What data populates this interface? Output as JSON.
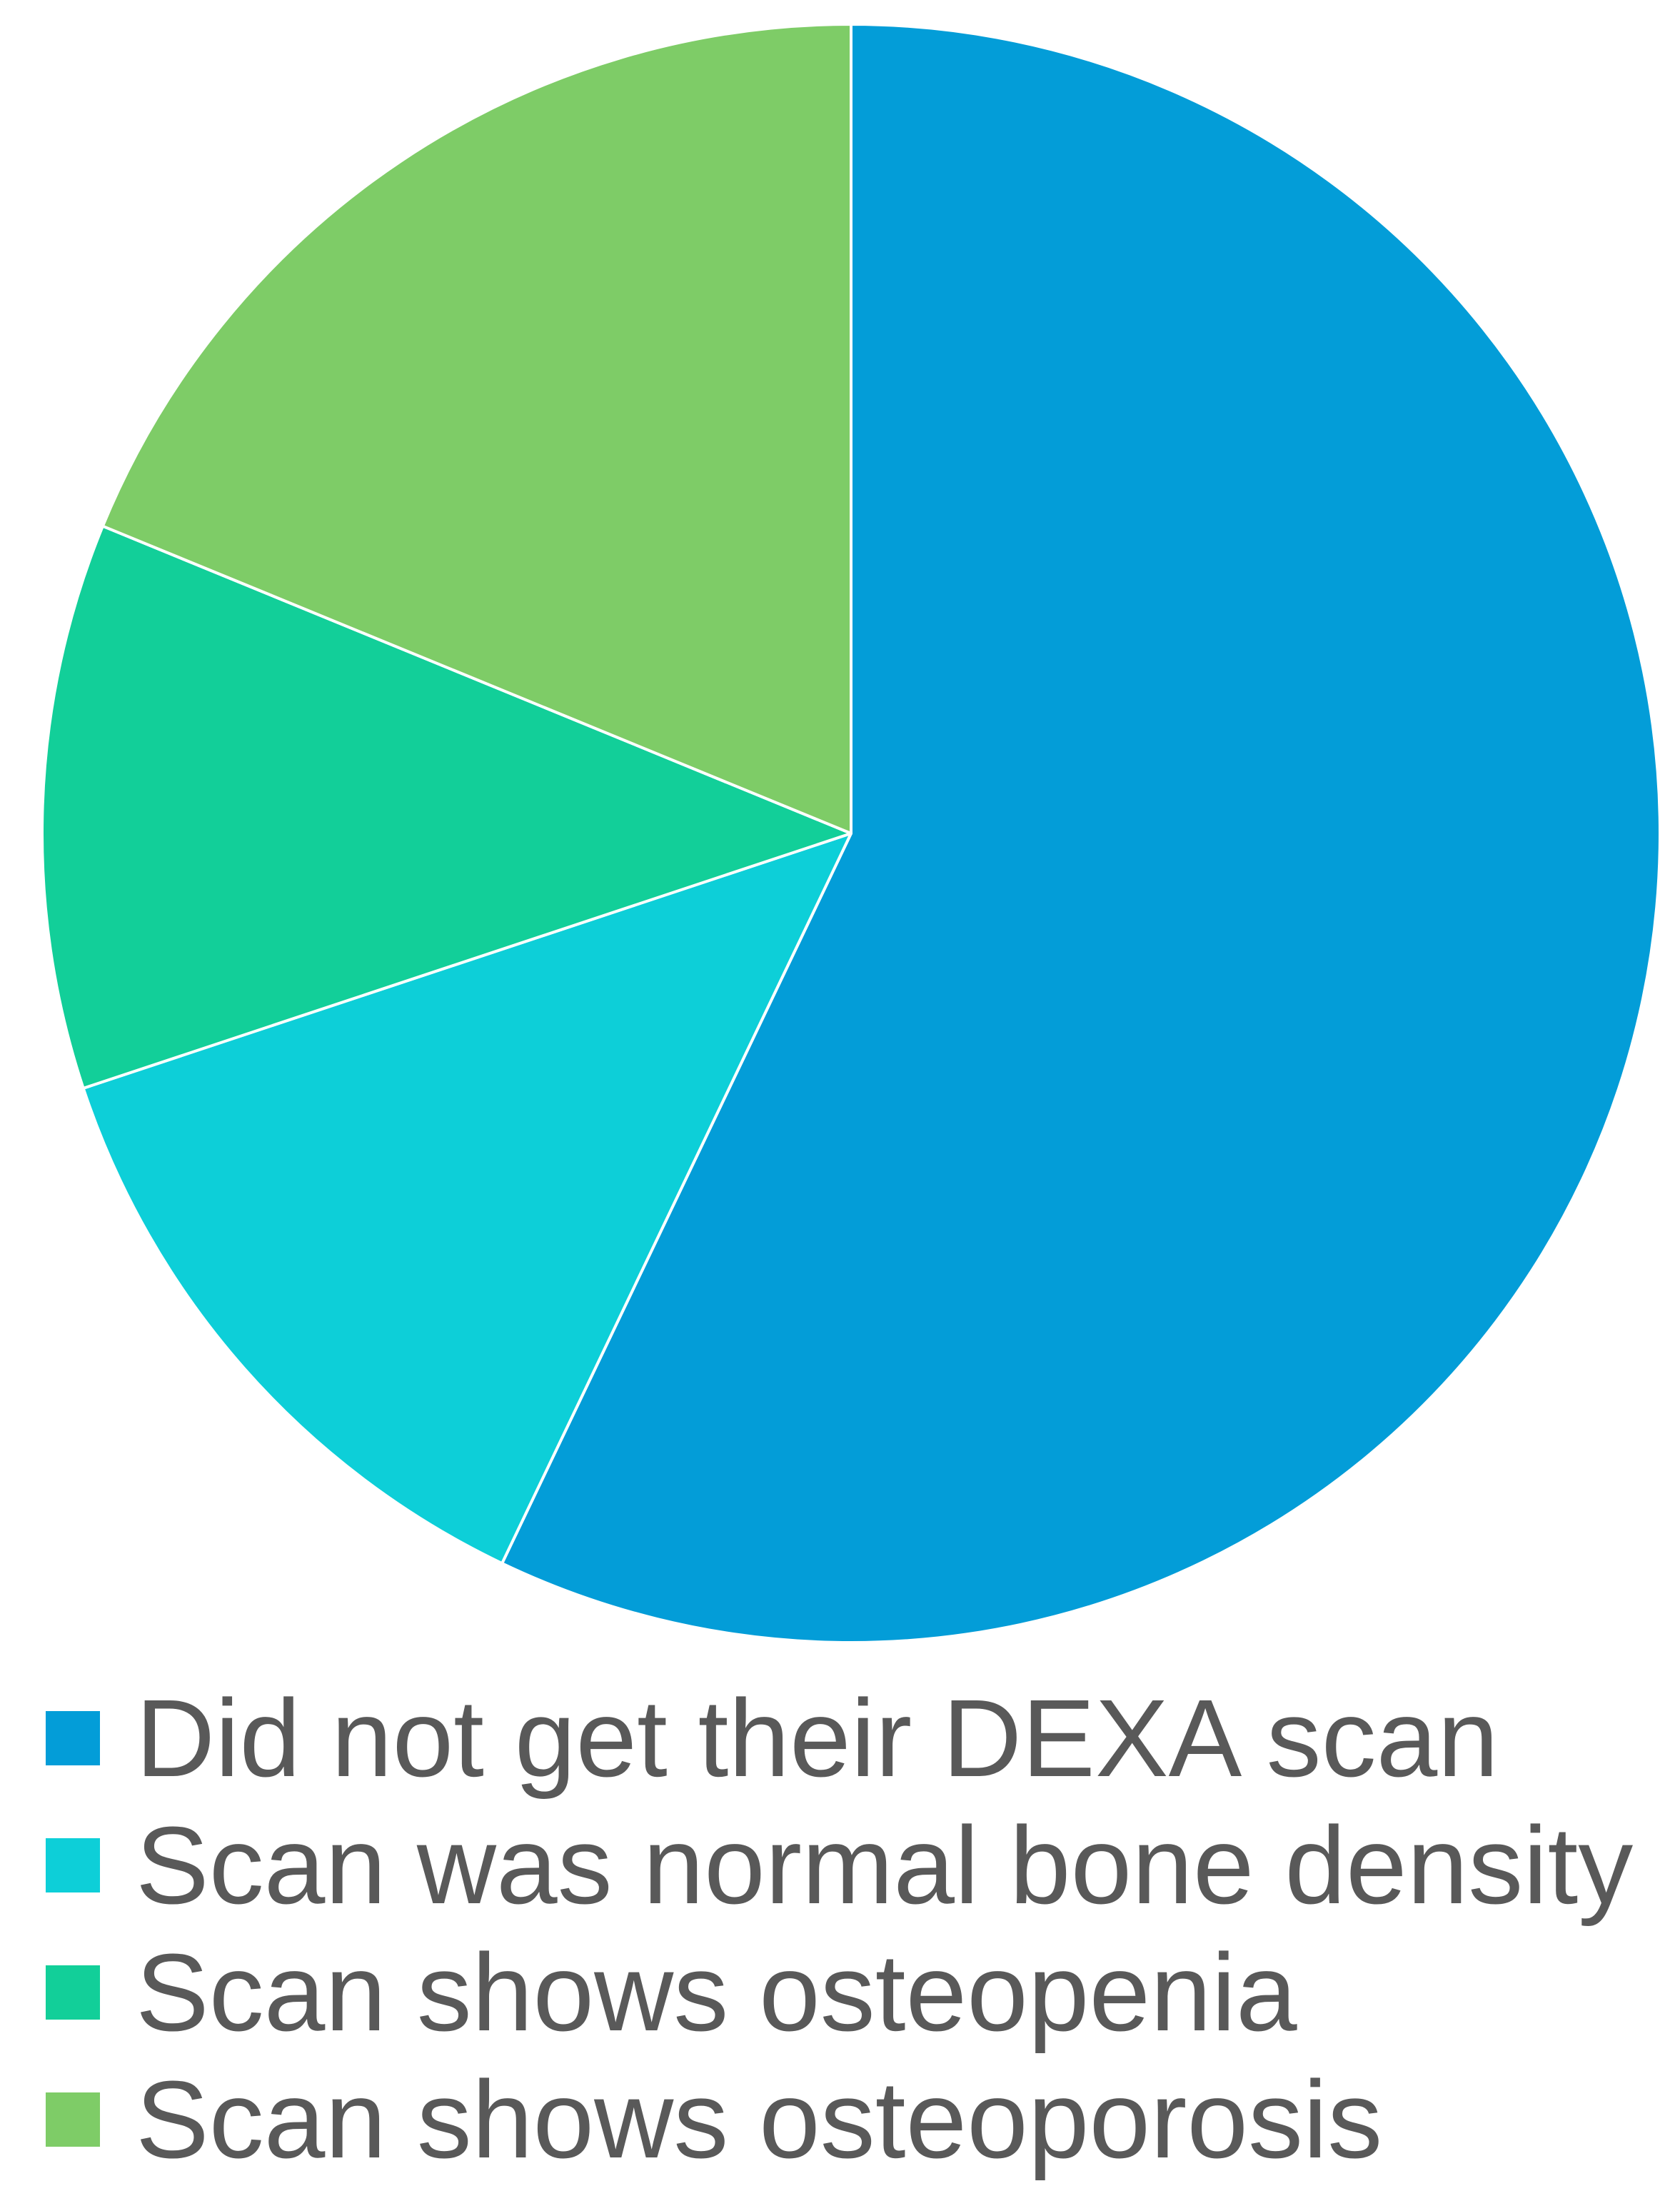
{
  "chart_data": {
    "type": "pie",
    "title": "",
    "start_angle_deg": 0,
    "direction": "clockwise",
    "slices": [
      {
        "label": "Did not get their DEXA scan",
        "value": 57.1,
        "color": "#039DD8"
      },
      {
        "label": "Scan was normal bone density",
        "value": 12.8,
        "color": "#0DCFD8"
      },
      {
        "label": "Scan shows osteopenia",
        "value": 11.3,
        "color": "#12CF99"
      },
      {
        "label": "Scan shows osteoporosis",
        "value": 18.8,
        "color": "#7ECC67"
      }
    ],
    "legend_position": "bottom",
    "data_labels": false
  }
}
